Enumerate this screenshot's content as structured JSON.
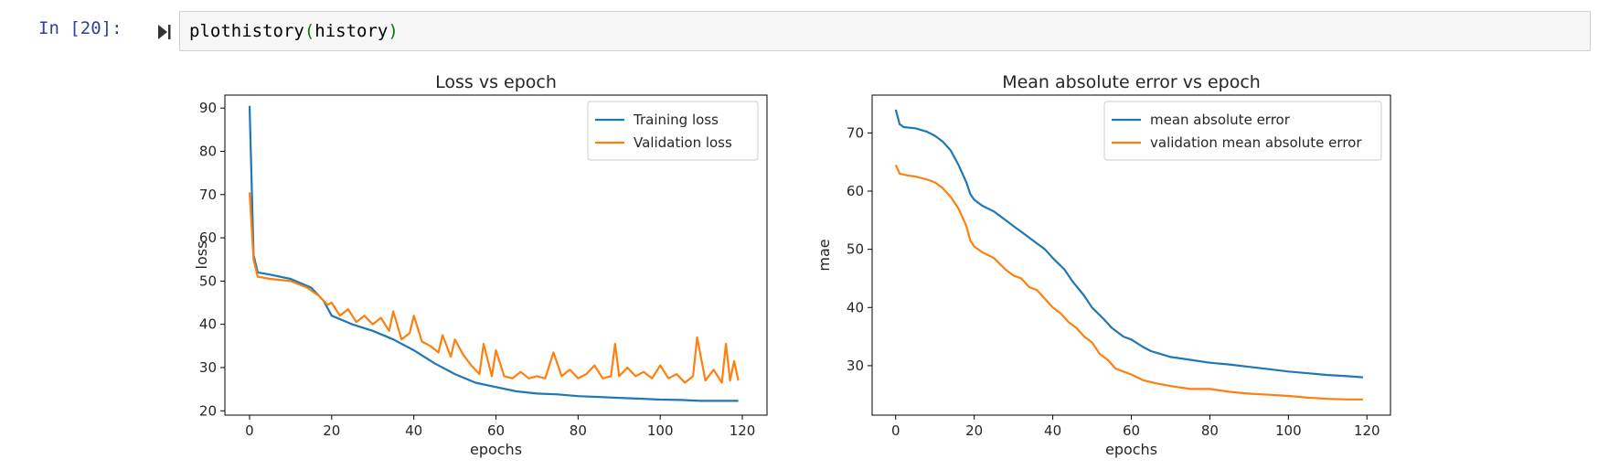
{
  "cell": {
    "prompt": "In [20]:",
    "code_fn": "plothistory",
    "code_open": "(",
    "code_arg": "history",
    "code_close": ")"
  },
  "colors": {
    "series_blue": "#1f77b4",
    "series_orange": "#ff7f0e",
    "prompt_blue": "#303f9f"
  },
  "icons": {
    "run": "run-cell-icon"
  },
  "chart_data": [
    {
      "type": "line",
      "title": "Loss vs epoch",
      "xlabel": "epochs",
      "ylabel": "loss",
      "xlim": [
        -6,
        126
      ],
      "ylim": [
        19,
        93
      ],
      "xticks": [
        0,
        20,
        40,
        60,
        80,
        100,
        120
      ],
      "yticks": [
        20,
        30,
        40,
        50,
        60,
        70,
        80,
        90
      ],
      "grid": false,
      "legend_position": "top-right",
      "series": [
        {
          "name": "Training loss",
          "color": "#1f77b4",
          "points": [
            [
              0,
              90.5
            ],
            [
              1,
              56
            ],
            [
              2,
              52
            ],
            [
              5,
              51.5
            ],
            [
              10,
              50.5
            ],
            [
              15,
              48.5
            ],
            [
              18,
              45.5
            ],
            [
              20,
              42
            ],
            [
              25,
              40
            ],
            [
              30,
              38.5
            ],
            [
              35,
              36.5
            ],
            [
              40,
              34
            ],
            [
              45,
              31
            ],
            [
              50,
              28.5
            ],
            [
              55,
              26.5
            ],
            [
              60,
              25.5
            ],
            [
              65,
              24.5
            ],
            [
              70,
              24
            ],
            [
              75,
              23.8
            ],
            [
              80,
              23.4
            ],
            [
              85,
              23.2
            ],
            [
              90,
              23
            ],
            [
              95,
              22.8
            ],
            [
              100,
              22.6
            ],
            [
              105,
              22.5
            ],
            [
              110,
              22.3
            ],
            [
              115,
              22.3
            ],
            [
              119,
              22.3
            ]
          ]
        },
        {
          "name": "Validation loss",
          "color": "#ff7f0e",
          "points": [
            [
              0,
              70.5
            ],
            [
              1,
              55
            ],
            [
              2,
              51
            ],
            [
              5,
              50.5
            ],
            [
              10,
              50
            ],
            [
              14,
              48.5
            ],
            [
              17,
              46.5
            ],
            [
              19,
              44.5
            ],
            [
              20,
              45
            ],
            [
              22,
              42
            ],
            [
              24,
              43.5
            ],
            [
              26,
              40.5
            ],
            [
              28,
              42
            ],
            [
              30,
              40
            ],
            [
              32,
              41.5
            ],
            [
              34,
              38.5
            ],
            [
              35,
              43
            ],
            [
              37,
              36.5
            ],
            [
              39,
              38
            ],
            [
              40,
              42
            ],
            [
              42,
              36
            ],
            [
              44,
              35
            ],
            [
              46,
              33.5
            ],
            [
              47,
              37.5
            ],
            [
              49,
              32.5
            ],
            [
              50,
              36.5
            ],
            [
              52,
              33
            ],
            [
              54,
              30.5
            ],
            [
              56,
              28.5
            ],
            [
              57,
              35.5
            ],
            [
              59,
              28
            ],
            [
              60,
              34
            ],
            [
              62,
              28
            ],
            [
              64,
              27.5
            ],
            [
              66,
              29
            ],
            [
              68,
              27.5
            ],
            [
              70,
              28
            ],
            [
              72,
              27.5
            ],
            [
              74,
              33.5
            ],
            [
              76,
              28
            ],
            [
              78,
              29.5
            ],
            [
              80,
              27.5
            ],
            [
              82,
              28.5
            ],
            [
              84,
              30.5
            ],
            [
              86,
              27.5
            ],
            [
              88,
              28
            ],
            [
              89,
              35.5
            ],
            [
              90,
              28
            ],
            [
              92,
              30
            ],
            [
              94,
              28
            ],
            [
              96,
              29
            ],
            [
              98,
              27.5
            ],
            [
              100,
              30.5
            ],
            [
              102,
              27.5
            ],
            [
              104,
              28.5
            ],
            [
              106,
              26.5
            ],
            [
              108,
              28
            ],
            [
              109,
              37
            ],
            [
              111,
              27
            ],
            [
              113,
              29.5
            ],
            [
              115,
              26.5
            ],
            [
              116,
              35.5
            ],
            [
              117,
              27
            ],
            [
              118,
              31.5
            ],
            [
              119,
              27
            ]
          ]
        }
      ]
    },
    {
      "type": "line",
      "title": "Mean absolute error vs epoch",
      "xlabel": "epochs",
      "ylabel": "mae",
      "xlim": [
        -6,
        126
      ],
      "ylim": [
        21.5,
        76.5
      ],
      "xticks": [
        0,
        20,
        40,
        60,
        80,
        100,
        120
      ],
      "yticks": [
        30,
        40,
        50,
        60,
        70
      ],
      "grid": false,
      "legend_position": "top-right",
      "series": [
        {
          "name": "mean absolute error",
          "color": "#1f77b4",
          "points": [
            [
              0,
              74
            ],
            [
              1,
              71.5
            ],
            [
              2,
              71
            ],
            [
              5,
              70.8
            ],
            [
              8,
              70.2
            ],
            [
              10,
              69.5
            ],
            [
              12,
              68.5
            ],
            [
              14,
              67
            ],
            [
              16,
              64.5
            ],
            [
              18,
              61.5
            ],
            [
              19,
              59.5
            ],
            [
              20,
              58.5
            ],
            [
              22,
              57.5
            ],
            [
              25,
              56.5
            ],
            [
              28,
              55
            ],
            [
              30,
              54
            ],
            [
              33,
              52.5
            ],
            [
              35,
              51.5
            ],
            [
              38,
              50
            ],
            [
              40,
              48.5
            ],
            [
              43,
              46.5
            ],
            [
              45,
              44.5
            ],
            [
              48,
              42
            ],
            [
              50,
              40
            ],
            [
              53,
              38
            ],
            [
              55,
              36.5
            ],
            [
              58,
              35
            ],
            [
              60,
              34.5
            ],
            [
              63,
              33.2
            ],
            [
              65,
              32.5
            ],
            [
              70,
              31.5
            ],
            [
              75,
              31
            ],
            [
              80,
              30.5
            ],
            [
              85,
              30.2
            ],
            [
              90,
              29.8
            ],
            [
              95,
              29.4
            ],
            [
              100,
              29
            ],
            [
              105,
              28.7
            ],
            [
              110,
              28.4
            ],
            [
              115,
              28.2
            ],
            [
              119,
              28
            ]
          ]
        },
        {
          "name": "validation mean absolute error",
          "color": "#ff7f0e",
          "points": [
            [
              0,
              64.5
            ],
            [
              1,
              63
            ],
            [
              3,
              62.7
            ],
            [
              5,
              62.5
            ],
            [
              8,
              62
            ],
            [
              10,
              61.5
            ],
            [
              12,
              60.5
            ],
            [
              14,
              59
            ],
            [
              16,
              57
            ],
            [
              18,
              54
            ],
            [
              19,
              51.5
            ],
            [
              20,
              50.5
            ],
            [
              22,
              49.5
            ],
            [
              25,
              48.5
            ],
            [
              28,
              46.5
            ],
            [
              30,
              45.5
            ],
            [
              32,
              45
            ],
            [
              34,
              43.5
            ],
            [
              36,
              43
            ],
            [
              38,
              41.5
            ],
            [
              40,
              40
            ],
            [
              42,
              39
            ],
            [
              44,
              37.5
            ],
            [
              46,
              36.5
            ],
            [
              48,
              35
            ],
            [
              50,
              34
            ],
            [
              52,
              32
            ],
            [
              54,
              31
            ],
            [
              56,
              29.5
            ],
            [
              58,
              29
            ],
            [
              60,
              28.5
            ],
            [
              63,
              27.5
            ],
            [
              66,
              27
            ],
            [
              70,
              26.5
            ],
            [
              75,
              26
            ],
            [
              80,
              26
            ],
            [
              85,
              25.5
            ],
            [
              90,
              25.2
            ],
            [
              95,
              25
            ],
            [
              100,
              24.8
            ],
            [
              105,
              24.5
            ],
            [
              110,
              24.3
            ],
            [
              115,
              24.2
            ],
            [
              119,
              24.2
            ]
          ]
        }
      ]
    }
  ]
}
